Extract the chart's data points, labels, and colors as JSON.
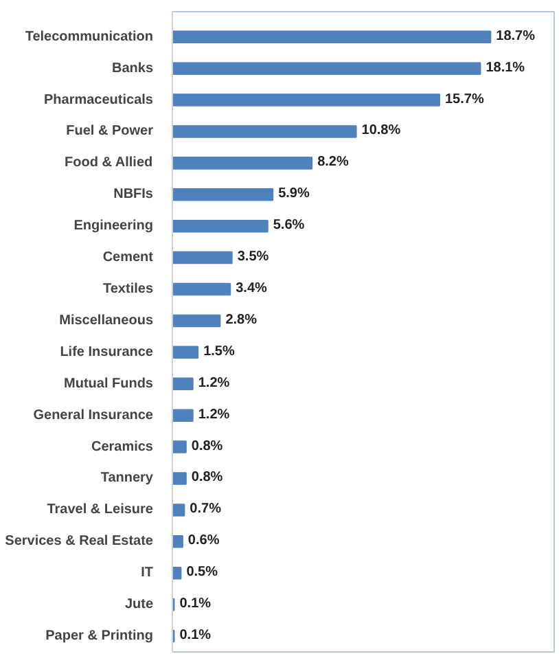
{
  "chart_data": {
    "type": "bar",
    "orientation": "horizontal",
    "categories": [
      "Telecommunication",
      "Banks",
      "Pharmaceuticals",
      "Fuel & Power",
      "Food & Allied",
      "NBFIs",
      "Engineering",
      "Cement",
      "Textiles",
      "Miscellaneous",
      "Life Insurance",
      "Mutual Funds",
      "General Insurance",
      "Ceramics",
      "Tannery",
      "Travel & Leisure",
      "Services & Real Estate",
      "IT",
      "Jute",
      "Paper & Printing"
    ],
    "values": [
      18.7,
      18.1,
      15.7,
      10.8,
      8.2,
      5.9,
      5.6,
      3.5,
      3.4,
      2.8,
      1.5,
      1.2,
      1.2,
      0.8,
      0.8,
      0.7,
      0.6,
      0.5,
      0.1,
      0.1
    ],
    "value_labels": [
      "18.7%",
      "18.1%",
      "15.7%",
      "10.8%",
      "8.2%",
      "5.9%",
      "5.6%",
      "3.5%",
      "3.4%",
      "2.8%",
      "1.5%",
      "1.2%",
      "1.2%",
      "0.8%",
      "0.8%",
      "0.7%",
      "0.6%",
      "0.5%",
      "0.1%",
      "0.1%"
    ],
    "color": "#4f81bd"
  }
}
